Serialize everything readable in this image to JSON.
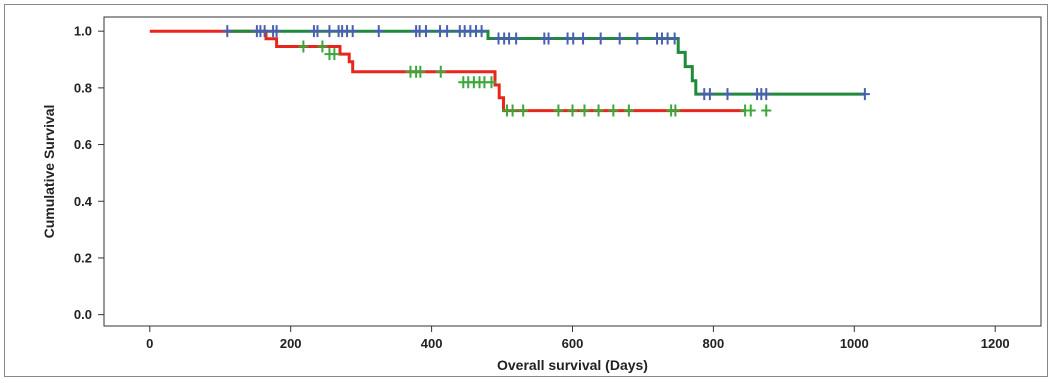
{
  "chart_data": {
    "type": "line",
    "subtype": "kaplan-meier",
    "title": "",
    "xlabel": "Overall survival (Days)",
    "ylabel": "Cumulative  Survival",
    "xlim": [
      -65,
      1265
    ],
    "ylim": [
      -0.04,
      1.05
    ],
    "xticks": [
      0,
      200,
      400,
      600,
      800,
      1000,
      1200
    ],
    "yticks": [
      0.0,
      0.2,
      0.4,
      0.6,
      0.8,
      1.0
    ],
    "grid": false,
    "legend": "none",
    "series": [
      {
        "color": "#e8261c",
        "steps": [
          [
            0,
            1.0
          ],
          [
            165,
            1.0
          ],
          [
            165,
            0.973
          ],
          [
            180,
            0.973
          ],
          [
            180,
            0.946
          ],
          [
            270,
            0.946
          ],
          [
            270,
            0.919
          ],
          [
            283,
            0.919
          ],
          [
            283,
            0.892
          ],
          [
            288,
            0.892
          ],
          [
            288,
            0.857
          ],
          [
            490,
            0.857
          ],
          [
            490,
            0.81
          ],
          [
            496,
            0.81
          ],
          [
            496,
            0.765
          ],
          [
            502,
            0.765
          ],
          [
            502,
            0.72
          ],
          [
            845,
            0.72
          ]
        ]
      },
      {
        "color": "#1f8a3a",
        "steps": [
          [
            110,
            1.0
          ],
          [
            480,
            1.0
          ],
          [
            480,
            0.974
          ],
          [
            750,
            0.974
          ],
          [
            750,
            0.925
          ],
          [
            760,
            0.925
          ],
          [
            760,
            0.875
          ],
          [
            770,
            0.875
          ],
          [
            770,
            0.825
          ],
          [
            775,
            0.825
          ],
          [
            775,
            0.778
          ],
          [
            1015,
            0.778
          ]
        ]
      }
    ],
    "censor_marks": [
      {
        "color": "#4a5fb0",
        "points": [
          [
            110,
            1.0
          ],
          [
            152,
            1.0
          ],
          [
            157,
            1.0
          ],
          [
            163,
            1.0
          ],
          [
            175,
            1.0
          ],
          [
            180,
            1.0
          ],
          [
            233,
            1.0
          ],
          [
            238,
            1.0
          ],
          [
            255,
            1.0
          ],
          [
            268,
            1.0
          ],
          [
            273,
            1.0
          ],
          [
            280,
            1.0
          ],
          [
            288,
            1.0
          ],
          [
            325,
            1.0
          ],
          [
            378,
            1.0
          ],
          [
            383,
            1.0
          ],
          [
            392,
            1.0
          ],
          [
            412,
            1.0
          ],
          [
            422,
            1.0
          ],
          [
            440,
            1.0
          ],
          [
            447,
            1.0
          ],
          [
            455,
            1.0
          ],
          [
            463,
            1.0
          ],
          [
            471,
            1.0
          ],
          [
            495,
            0.974
          ],
          [
            503,
            0.974
          ],
          [
            510,
            0.974
          ],
          [
            520,
            0.974
          ],
          [
            560,
            0.974
          ],
          [
            566,
            0.974
          ],
          [
            593,
            0.974
          ],
          [
            601,
            0.974
          ],
          [
            615,
            0.974
          ],
          [
            640,
            0.974
          ],
          [
            667,
            0.974
          ],
          [
            692,
            0.974
          ],
          [
            720,
            0.974
          ],
          [
            727,
            0.974
          ],
          [
            735,
            0.974
          ],
          [
            745,
            0.974
          ],
          [
            787,
            0.778
          ],
          [
            795,
            0.778
          ],
          [
            820,
            0.778
          ],
          [
            862,
            0.778
          ],
          [
            868,
            0.778
          ],
          [
            875,
            0.778
          ],
          [
            1015,
            0.778
          ]
        ]
      },
      {
        "color": "#3aa83a",
        "points": [
          [
            218,
            0.946
          ],
          [
            245,
            0.946
          ],
          [
            255,
            0.919
          ],
          [
            262,
            0.919
          ],
          [
            370,
            0.857
          ],
          [
            378,
            0.857
          ],
          [
            384,
            0.857
          ],
          [
            413,
            0.857
          ],
          [
            445,
            0.82
          ],
          [
            452,
            0.82
          ],
          [
            460,
            0.82
          ],
          [
            468,
            0.82
          ],
          [
            475,
            0.82
          ],
          [
            485,
            0.82
          ],
          [
            507,
            0.72
          ],
          [
            515,
            0.72
          ],
          [
            530,
            0.72
          ],
          [
            580,
            0.72
          ],
          [
            600,
            0.72
          ],
          [
            617,
            0.72
          ],
          [
            637,
            0.72
          ],
          [
            658,
            0.72
          ],
          [
            680,
            0.72
          ],
          [
            740,
            0.72
          ],
          [
            746,
            0.72
          ],
          [
            845,
            0.72
          ],
          [
            853,
            0.72
          ],
          [
            875,
            0.72
          ]
        ]
      }
    ]
  }
}
